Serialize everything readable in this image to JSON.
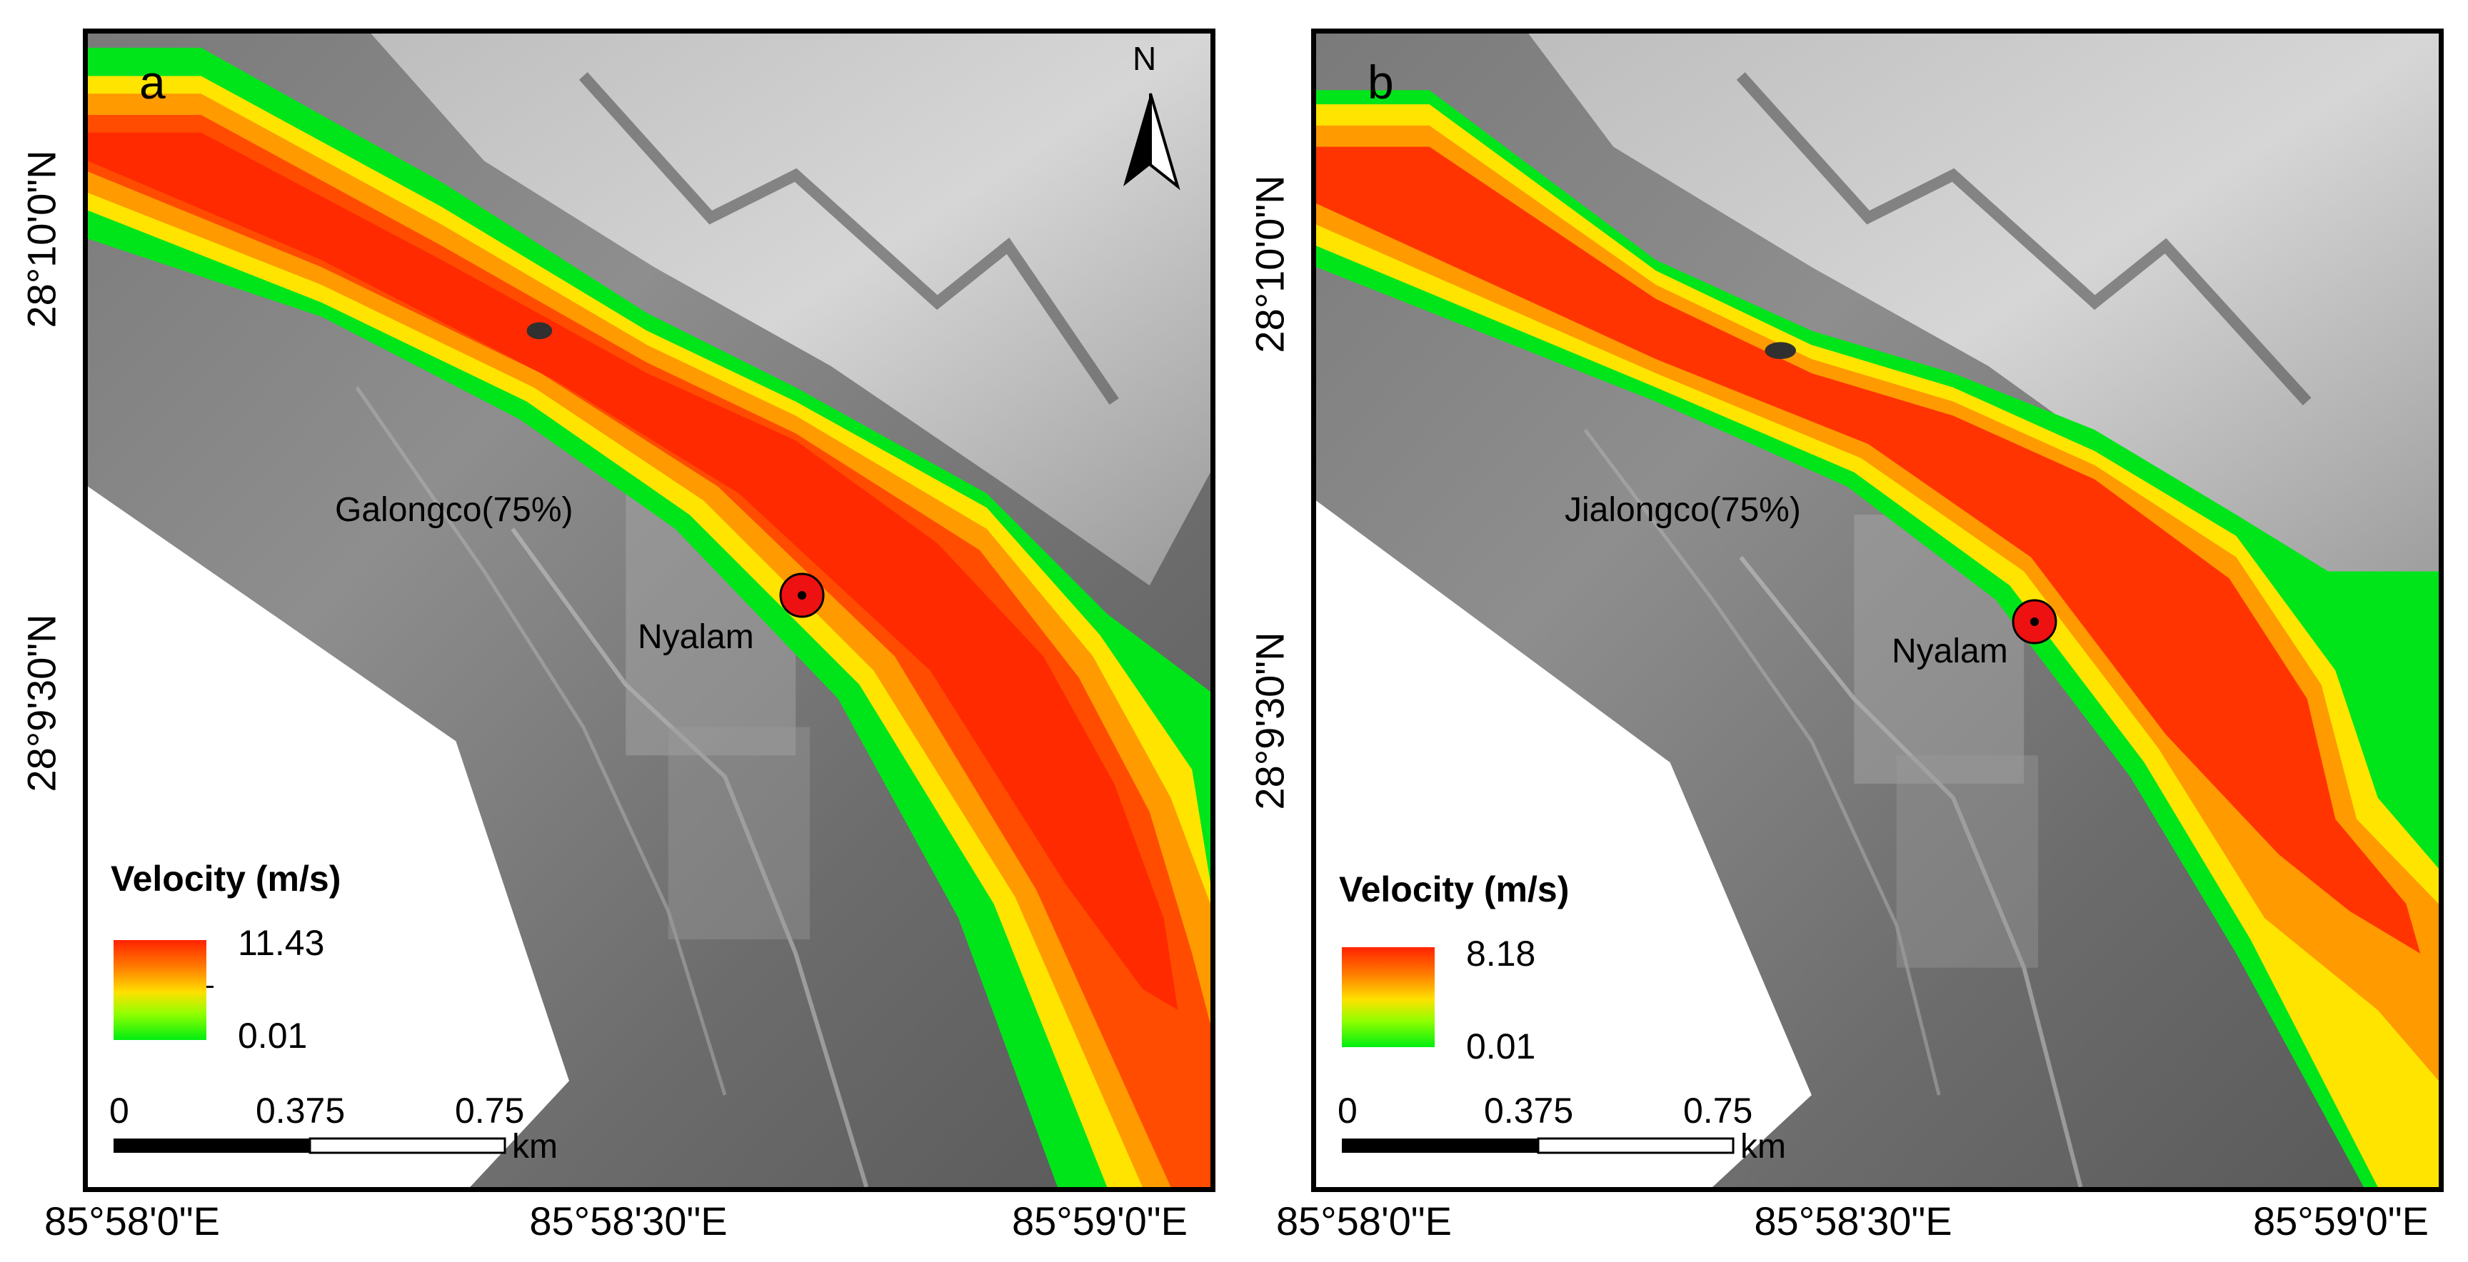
{
  "panels": [
    {
      "label": "a",
      "north_label": "N",
      "lake_label": "Galongco(75%)",
      "town_label": "Nyalam",
      "legend": {
        "title": "Velocity (m/s)",
        "max": "11.43",
        "min": "0.01"
      },
      "scale": {
        "ticks": [
          "0",
          "0.375",
          "0.75"
        ],
        "unit": "km"
      },
      "lat_ticks": [
        "28°10'0\"N",
        "28°9'30\"N"
      ],
      "lon_ticks": [
        "85°58'0\"E",
        "85°58'30\"E",
        "85°59'0\"E"
      ]
    },
    {
      "label": "b",
      "lake_label": "Jialongco(75%)",
      "town_label": "Nyalam",
      "legend": {
        "title": "Velocity (m/s)",
        "max": "8.18",
        "min": "0.01"
      },
      "scale": {
        "ticks": [
          "0",
          "0.375",
          "0.75"
        ],
        "unit": "km"
      },
      "lat_ticks": [
        "28°10'0\"N",
        "28°9'30\"N"
      ],
      "lon_ticks": [
        "85°58'0\"E",
        "85°58'30\"E",
        "85°59'0\"E"
      ]
    }
  ],
  "colors": {
    "velocity_high": "#ff2200",
    "velocity_mid": "#ffe000",
    "velocity_low": "#00ee10",
    "town_marker": "#ee1111"
  },
  "icons": [
    "north-arrow-icon",
    "town-marker-icon",
    "scale-bar-icon"
  ]
}
